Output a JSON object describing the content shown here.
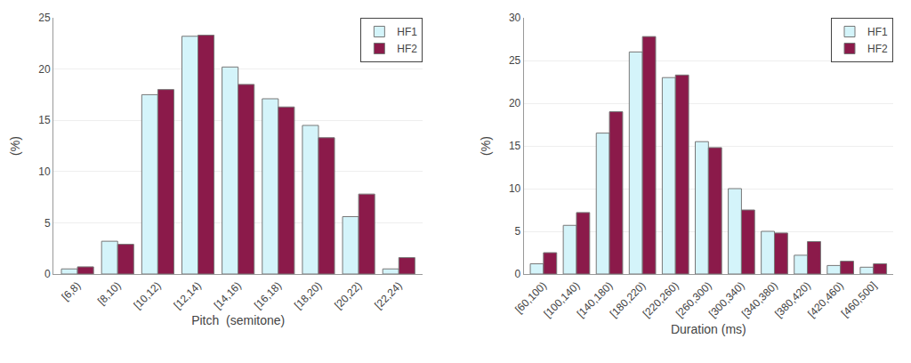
{
  "chart_data": [
    {
      "type": "bar",
      "xlabel": "Pitch  (semitone)",
      "ylabel": "(%)",
      "categories": [
        "[6,8)",
        "[8,10)",
        "[10,12)",
        "[12,14)",
        "[14,16)",
        "[16,18)",
        "[18,20)",
        "[20,22)",
        "[22,24)"
      ],
      "series": [
        {
          "name": "HF1",
          "color": "#d4f4fa",
          "values": [
            0.5,
            3.2,
            17.5,
            23.2,
            20.2,
            17.1,
            14.5,
            5.6,
            0.5
          ]
        },
        {
          "name": "HF2",
          "color": "#8b1a4a",
          "values": [
            0.7,
            2.9,
            18.0,
            23.3,
            18.5,
            16.3,
            13.3,
            7.8,
            1.6
          ]
        }
      ],
      "ylim": [
        0,
        25
      ],
      "yticks": [
        0,
        5,
        10,
        15,
        20,
        25
      ],
      "grid": true,
      "legend": "upper right"
    },
    {
      "type": "bar",
      "xlabel": "Duration (ms)",
      "ylabel": "(%)",
      "categories": [
        "[60,100)",
        "[100,140)",
        "[140,180)",
        "[180,220)",
        "[220,260)",
        "[260,300)",
        "[300,340)",
        "[340,380)",
        "[380,420)",
        "[420,460)",
        "[460,500]"
      ],
      "series": [
        {
          "name": "HF1",
          "color": "#d4f4fa",
          "values": [
            1.2,
            5.7,
            16.5,
            26.0,
            23.0,
            15.5,
            10.0,
            5.0,
            2.2,
            1.0,
            0.8
          ]
        },
        {
          "name": "HF2",
          "color": "#8b1a4a",
          "values": [
            2.5,
            7.2,
            19.0,
            27.8,
            23.3,
            14.8,
            7.5,
            4.8,
            3.8,
            1.5,
            1.2
          ]
        }
      ],
      "ylim": [
        0,
        30
      ],
      "yticks": [
        0,
        5,
        10,
        15,
        20,
        25,
        30
      ],
      "grid": true,
      "legend": "upper right"
    }
  ]
}
